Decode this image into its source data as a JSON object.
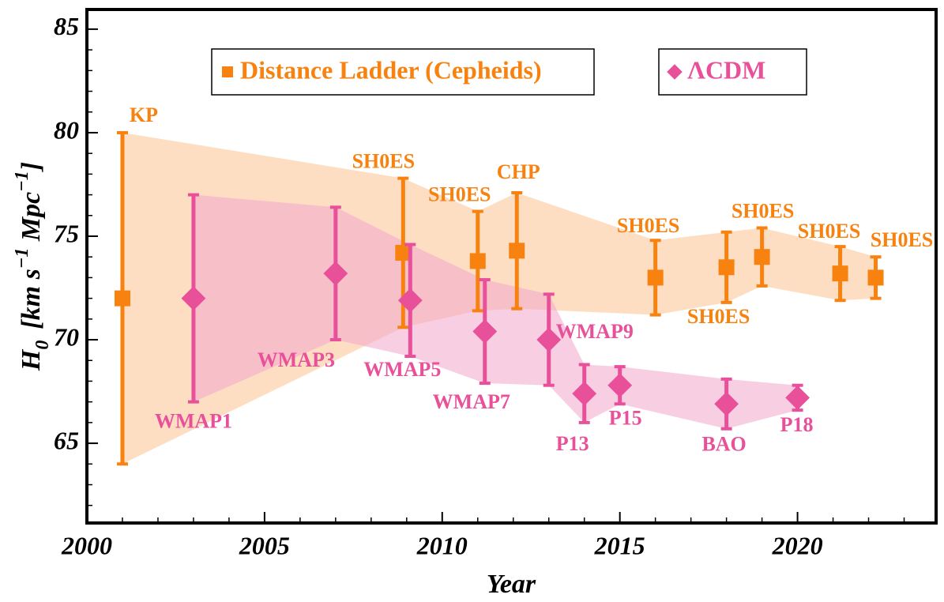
{
  "chart_data": {
    "type": "errorbar-scatter",
    "xlabel": "Year",
    "ylabel": [
      "H",
      "0",
      "[km s",
      "−1",
      " Mpc",
      "−1",
      "]"
    ],
    "xlim": [
      2000,
      2023.9
    ],
    "ylim": [
      61.15,
      85.95
    ],
    "xticks": [
      2000,
      2005,
      2010,
      2015,
      2020
    ],
    "yticks": [
      65,
      70,
      75,
      80,
      85
    ],
    "series": [
      {
        "name": "Distance Ladder (Cepheids)",
        "color": "#f7820f",
        "band_color": "#fcd3ad",
        "marker": "square",
        "x": [
          2001,
          2008.9,
          2011,
          2012.1,
          2016,
          2018,
          2019,
          2021.2,
          2022.2
        ],
        "values": [
          72.0,
          74.2,
          73.8,
          74.3,
          73.0,
          73.5,
          74.0,
          73.2,
          73.0
        ],
        "errors": [
          8.0,
          3.6,
          2.4,
          2.8,
          1.8,
          1.7,
          1.4,
          1.3,
          1.0
        ],
        "labels": [
          "KP",
          "SH0ES",
          "SH0ES",
          "CHP",
          "SH0ES",
          "SH0ES",
          "SH0ES",
          "SH0ES",
          "SH0ES"
        ]
      },
      {
        "name": "ΛCDM",
        "color": "#e8509a",
        "band_color": "#f3a6cc",
        "marker": "diamond",
        "x": [
          2003,
          2007,
          2009.1,
          2011.2,
          2013,
          2014,
          2015,
          2018,
          2020
        ],
        "values": [
          72.0,
          73.2,
          71.9,
          70.4,
          70.0,
          67.4,
          67.8,
          66.9,
          67.2
        ],
        "errors": [
          5.0,
          3.2,
          2.7,
          2.5,
          2.2,
          1.4,
          0.9,
          1.2,
          0.6
        ],
        "labels": [
          "WMAP1",
          "WMAP3",
          "WMAP5",
          "WMAP7",
          "WMAP9",
          "P13",
          "P15",
          "BAO",
          "P18"
        ]
      }
    ]
  }
}
